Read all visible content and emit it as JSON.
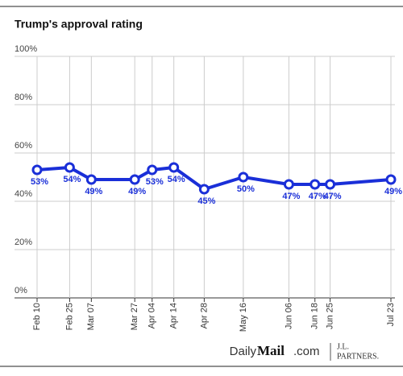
{
  "chart_data": {
    "type": "line",
    "title": "Trump's approval rating",
    "categories": [
      "Feb 10",
      "Feb 25",
      "Mar 07",
      "Mar 27",
      "Apr 04",
      "Apr 14",
      "Apr 28",
      "May 16",
      "Jun 06",
      "Jun 18",
      "Jun 25",
      "Jul 23"
    ],
    "series": [
      {
        "name": "Approval",
        "color": "#1a2fd8",
        "values": [
          53,
          54,
          49,
          49,
          53,
          54,
          45,
          50,
          47,
          47,
          47,
          49
        ],
        "value_labels": [
          "53%",
          "54%",
          "49%",
          "49%",
          "53%",
          "54%",
          "45%",
          "50%",
          "47%",
          "47%",
          "47%",
          "49%"
        ]
      }
    ],
    "ylim": [
      0,
      100
    ],
    "yticks": [
      {
        "value": 0,
        "label": "0%"
      },
      {
        "value": 20,
        "label": "20%"
      },
      {
        "value": 40,
        "label": "40%"
      },
      {
        "value": 60,
        "label": "60%"
      },
      {
        "value": 80,
        "label": "80%"
      },
      {
        "value": 100,
        "label": "100%"
      }
    ],
    "grid": true,
    "source": {
      "brand": "Daily",
      "brand_bold": "Mail",
      "brand_suffix": ".com",
      "partner_top": "J.L.",
      "partner_bottom": "PARTNERS."
    }
  }
}
